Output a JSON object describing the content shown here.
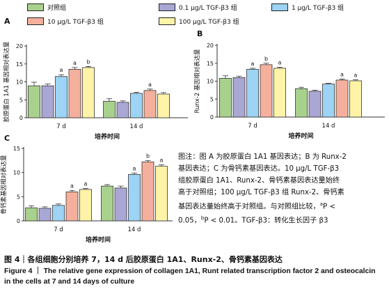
{
  "legend": [
    {
      "label": "对照组",
      "color": "#a9d18e"
    },
    {
      "label": "0.1 μg/L TGF-β3 组",
      "color": "#a9a7d4"
    },
    {
      "label": "1 μg/L TGF-β3 组",
      "color": "#9dd3f5"
    },
    {
      "label": "10 μg/L TGF-β3 组",
      "color": "#f4b09c"
    },
    {
      "label": "100 μg/L TGF-β3 组",
      "color": "#fff3a8"
    }
  ],
  "note": {
    "line1": "图注：图 A 为胶原蛋白 1A1 基因表达；B 为 Runx-2",
    "line2": "基因表达；C 为骨钙素基因表达。10 μg/L TGF-β3",
    "line3": "组胶原蛋白 1A1、Runx-2、骨钙素基因表达量始终",
    "line4": "高于对照组；100 μg/L TGF-β3 组 Runx-2、骨钙素",
    "line5a": "基因表达量始终高于对照组。与对照组比较，",
    "sup_a": "a",
    "line5b": "P <",
    "line6a": "0.05，",
    "sup_b": "b",
    "line6b": "P < 0.01。TGF-β3：转化生长因子 β3"
  },
  "caption": {
    "zh": "图 4｜各组细胞分别培养 7，14 d 后胶原蛋白 1A1、Runx-2、骨钙素基因表达",
    "en": "Figure 4 ｜ The relative gene expression of collagen 1A1, Runt related transcription factor 2 and osteocalcin in the cells at 7 and 14 days of culture"
  },
  "chart_data": [
    {
      "panel": "A",
      "type": "bar",
      "categories": [
        "7 d",
        "14 d"
      ],
      "xlabel": "培养时间",
      "ylabel": "胶原蛋白 1A1 基因相对表达量",
      "ylim": [
        0,
        20
      ],
      "yticks": [
        0,
        5,
        10,
        15,
        20
      ],
      "series": [
        {
          "name": "对照组",
          "values": [
            8.9,
            4.6
          ],
          "errors": [
            1.0,
            0.7
          ],
          "labels": [
            "",
            ""
          ]
        },
        {
          "name": "0.1 μg/L TGF-β3 组",
          "values": [
            8.9,
            4.3
          ],
          "errors": [
            0.5,
            0.4
          ],
          "labels": [
            "",
            ""
          ]
        },
        {
          "name": "1 μg/L TGF-β3 组",
          "values": [
            11.5,
            6.8
          ],
          "errors": [
            0.5,
            0.3
          ],
          "labels": [
            "a",
            ""
          ]
        },
        {
          "name": "10 μg/L TGF-β3 组",
          "values": [
            13.5,
            7.6
          ],
          "errors": [
            0.5,
            0.4
          ],
          "labels": [
            "a",
            "a"
          ]
        },
        {
          "name": "100 μg/L TGF-β3 组",
          "values": [
            14.0,
            6.6
          ],
          "errors": [
            0.3,
            0.4
          ],
          "labels": [
            "b",
            ""
          ]
        }
      ]
    },
    {
      "panel": "B",
      "type": "bar",
      "categories": [
        "7 d",
        "14 d"
      ],
      "xlabel": "培养时间",
      "ylabel": "Runx-2 基因相对表达量",
      "ylim": [
        0,
        20
      ],
      "yticks": [
        0,
        5,
        10,
        15,
        20
      ],
      "series": [
        {
          "name": "对照组",
          "values": [
            10.8,
            7.9
          ],
          "errors": [
            0.7,
            0.4
          ],
          "labels": [
            "",
            ""
          ]
        },
        {
          "name": "0.1 μg/L TGF-β3 组",
          "values": [
            11.0,
            7.2
          ],
          "errors": [
            0.4,
            0.3
          ],
          "labels": [
            "",
            ""
          ]
        },
        {
          "name": "1 μg/L TGF-β3 组",
          "values": [
            13.3,
            9.2
          ],
          "errors": [
            0.3,
            0.2
          ],
          "labels": [
            "a",
            ""
          ]
        },
        {
          "name": "10 μg/L TGF-β3 组",
          "values": [
            14.6,
            10.3
          ],
          "errors": [
            0.4,
            0.3
          ],
          "labels": [
            "b",
            "a"
          ]
        },
        {
          "name": "100 μg/L TGF-β3 组",
          "values": [
            13.6,
            10.1
          ],
          "errors": [
            0.3,
            0.3
          ],
          "labels": [
            "a",
            "a"
          ]
        }
      ]
    },
    {
      "panel": "C",
      "type": "bar",
      "categories": [
        "7 d",
        "14 d"
      ],
      "xlabel": "培养时间",
      "ylabel": "骨钙素基因相对表达量",
      "ylim": [
        0,
        15
      ],
      "yticks": [
        0,
        5,
        10,
        15
      ],
      "series": [
        {
          "name": "对照组",
          "values": [
            2.7,
            7.2
          ],
          "errors": [
            0.4,
            0.3
          ],
          "labels": [
            "",
            ""
          ]
        },
        {
          "name": "0.1 μg/L TGF-β3 组",
          "values": [
            2.6,
            6.8
          ],
          "errors": [
            0.3,
            0.4
          ],
          "labels": [
            "",
            ""
          ]
        },
        {
          "name": "1 μg/L TGF-β3 组",
          "values": [
            3.2,
            9.6
          ],
          "errors": [
            0.3,
            0.3
          ],
          "labels": [
            "",
            "a"
          ]
        },
        {
          "name": "10 μg/L TGF-β3 组",
          "values": [
            6.0,
            12.2
          ],
          "errors": [
            0.3,
            0.3
          ],
          "labels": [
            "a",
            "b"
          ]
        },
        {
          "name": "100 μg/L TGF-β3 组",
          "values": [
            6.5,
            11.3
          ],
          "errors": [
            0.2,
            0.3
          ],
          "labels": [
            "a",
            "a"
          ]
        }
      ]
    }
  ]
}
